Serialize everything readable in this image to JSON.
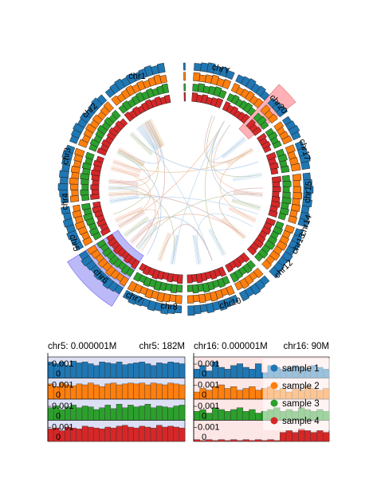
{
  "colors": {
    "sample_1": "#1f77b4",
    "sample_2": "#ff7f0e",
    "sample_3": "#2ca02c",
    "sample_4": "#d62728",
    "chr5_highlight": "#6b63f0",
    "chr16_highlight": "#ff9ea4",
    "bg_chr5": "#dde0f5",
    "bg_chr16": "#fde6e6"
  },
  "chart_data": [
    {
      "type": "circos",
      "chromosomes": [
        "chr1",
        "chr2",
        "chr3",
        "chr4",
        "chr5",
        "chr6",
        "chr7",
        "chr8",
        "chr10",
        "chr12",
        "chr13",
        "chr14",
        "chr15",
        "chr17",
        "chr20",
        "chrY"
      ],
      "highlighted": [
        "chr5",
        "chr16"
      ],
      "tracks": [
        "sample 1",
        "sample 2",
        "sample 3",
        "sample 4"
      ]
    },
    {
      "type": "bar",
      "title_left": "chr5: 0.000001M",
      "title_right": "chr5: 182M",
      "ytick_labels": [
        "0.001",
        "0"
      ],
      "series": [
        {
          "name": "sample 1",
          "values": [
            0.9,
            0.8,
            0.9,
            0.7,
            0.95,
            0.85,
            0.9,
            0.8,
            0.7,
            0.9,
            0.85,
            0.8,
            0.9,
            0.75,
            0.8,
            0.85,
            0.9,
            0.8,
            0.7,
            0.85,
            0.8,
            0.9,
            0.85,
            0.8
          ]
        },
        {
          "name": "sample 2",
          "values": [
            0.85,
            0.7,
            0.9,
            0.8,
            0.75,
            0.85,
            0.8,
            0.9,
            0.8,
            0.7,
            0.85,
            0.9,
            0.8,
            0.85,
            0.9,
            0.85,
            0.9,
            0.8,
            0.9,
            0.85,
            0.8,
            0.9,
            0.85,
            0.8
          ]
        },
        {
          "name": "sample 3",
          "values": [
            0.7,
            0.8,
            0.6,
            0.75,
            0.85,
            0.7,
            0.8,
            0.75,
            0.6,
            0.7,
            0.85,
            0.65,
            0.9,
            0.7,
            0.85,
            0.75,
            0.8,
            0.9,
            0.7,
            0.8,
            0.75,
            0.7,
            0.8,
            0.85
          ]
        },
        {
          "name": "sample 4",
          "values": [
            0.7,
            0.75,
            0.6,
            0.8,
            0.75,
            0.7,
            0.85,
            0.8,
            0.75,
            0.7,
            0.8,
            0.75,
            0.85,
            0.9,
            0.8,
            0.75,
            0.85,
            0.8,
            0.75,
            0.9,
            0.8,
            0.85,
            0.8,
            0.75
          ]
        }
      ]
    },
    {
      "type": "bar",
      "title_left": "chr16: 0.000001M",
      "title_right": "chr16: 90M",
      "ytick_labels": [
        "0.001",
        "0"
      ],
      "series": [
        {
          "name": "sample 1",
          "values": [
            0.5,
            0.7,
            0.4,
            0.9,
            0.6,
            0.5,
            0.7,
            0.8,
            0.6,
            0.5,
            0.8,
            0.3,
            0.7,
            0.6,
            0.5,
            0.6,
            0.7,
            0.6,
            0.5,
            0.7,
            0.6,
            0.5
          ]
        },
        {
          "name": "sample 2",
          "values": [
            0.4,
            0.6,
            0.5,
            0.7,
            0.8,
            0.6,
            0.7,
            0.5,
            0.6,
            0.7,
            0.5,
            0.6,
            0.7,
            0.5,
            0.6,
            0.4,
            0.6,
            0.5,
            0.7,
            0.6,
            0.5,
            0.6
          ]
        },
        {
          "name": "sample 3",
          "values": [
            0.5,
            0.6,
            0.4,
            0.7,
            0.6,
            0.5,
            0.6,
            0.7,
            0.5,
            0.6,
            0.4,
            0.5,
            0.6,
            0.7,
            0.5,
            0.6,
            0.5,
            0.7,
            0.6,
            0.5,
            0.6,
            0.5
          ]
        },
        {
          "name": "sample 4",
          "values": [
            0.1,
            0.05,
            0.1,
            0.05,
            0.1,
            0.05,
            0.1,
            0.05,
            0.1,
            0.05,
            0.1,
            0.05,
            0.1,
            0.05,
            0.5,
            0.6,
            0.5,
            0.7,
            0.6,
            0.5,
            0.6,
            0.5
          ]
        }
      ]
    }
  ],
  "legend": {
    "placement": "right",
    "entries": [
      "sample 1",
      "sample 2",
      "sample 3",
      "sample 4"
    ]
  }
}
